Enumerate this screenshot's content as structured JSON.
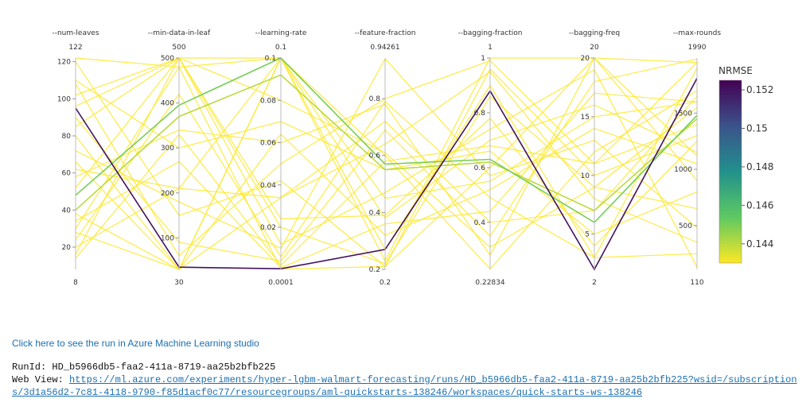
{
  "chart_data": {
    "type": "parallel_coordinates",
    "metric": "NRMSE",
    "colorbar": {
      "ticks": [
        "0.152",
        "0.15",
        "0.148",
        "0.146",
        "0.144"
      ],
      "colors": [
        "#440154",
        "#3b528b",
        "#21918c",
        "#5ec962",
        "#fde725"
      ]
    },
    "axes": [
      {
        "name": "--num-leaves",
        "top": "122",
        "bottom": "8",
        "ticks": [
          "120",
          "100",
          "80",
          "60",
          "40",
          "20"
        ]
      },
      {
        "name": "--min-data-in-leaf",
        "top": "500",
        "bottom": "30",
        "ticks": [
          "500",
          "400",
          "300",
          "200",
          "100"
        ]
      },
      {
        "name": "--learning-rate",
        "top": "0.1",
        "bottom": "0.0001",
        "ticks": [
          "0.1",
          "0.08",
          "0.06",
          "0.04",
          "0.02"
        ]
      },
      {
        "name": "--feature-fraction",
        "top": "0.94261",
        "bottom": "0.2",
        "ticks": [
          "0.8",
          "0.6",
          "0.4",
          "0.2"
        ]
      },
      {
        "name": "--bagging-fraction",
        "top": "1",
        "bottom": "0.22834",
        "ticks": [
          "1",
          "0.8",
          "0.6",
          "0.4"
        ]
      },
      {
        "name": "--bagging-freq",
        "top": "20",
        "bottom": "2",
        "ticks": [
          "20",
          "15",
          "10",
          "5"
        ]
      },
      {
        "name": "--max-rounds",
        "top": "1990",
        "bottom": "110",
        "ticks": [
          "1500",
          "1000",
          "500"
        ]
      }
    ],
    "runs": [
      {
        "values": [
          95,
          35,
          0.0004,
          0.27,
          0.88,
          2,
          1810
        ],
        "nrmse": 0.152
      },
      {
        "values": [
          48,
          395,
          0.1,
          0.57,
          0.63,
          6,
          1480
        ],
        "nrmse": 0.145
      },
      {
        "values": [
          40,
          370,
          0.092,
          0.55,
          0.62,
          7,
          1450
        ],
        "nrmse": 0.144
      },
      {
        "values": [
          122,
          480,
          0.0002,
          0.21,
          0.6,
          20,
          1950
        ],
        "nrmse": 0.143
      },
      {
        "values": [
          108,
          60,
          0.05,
          0.8,
          0.99,
          11,
          1400
        ],
        "nrmse": 0.143
      },
      {
        "values": [
          102,
          500,
          0.024,
          0.39,
          0.78,
          4,
          1250
        ],
        "nrmse": 0.143
      },
      {
        "values": [
          90,
          90,
          0.004,
          0.69,
          0.35,
          18,
          1980
        ],
        "nrmse": 0.143
      },
      {
        "values": [
          85,
          500,
          0.1,
          0.38,
          0.7,
          16,
          1150
        ],
        "nrmse": 0.143
      },
      {
        "values": [
          72,
          180,
          0.01,
          0.94,
          0.57,
          13,
          480
        ],
        "nrmse": 0.143
      },
      {
        "values": [
          66,
          30,
          0.1,
          0.45,
          0.55,
          15,
          1600
        ],
        "nrmse": 0.143
      },
      {
        "values": [
          58,
          340,
          0.06,
          0.78,
          0.28,
          20,
          900
        ],
        "nrmse": 0.143
      },
      {
        "values": [
          52,
          500,
          0.02,
          0.22,
          0.86,
          9,
          650
        ],
        "nrmse": 0.143
      },
      {
        "values": [
          38,
          30,
          0.034,
          0.64,
          0.95,
          8,
          350
        ],
        "nrmse": 0.143
      },
      {
        "values": [
          34,
          270,
          0.0009,
          0.36,
          0.44,
          17,
          1600
        ],
        "nrmse": 0.143
      },
      {
        "values": [
          28,
          30,
          0.1,
          0.27,
          0.9,
          3,
          250
        ],
        "nrmse": 0.143
      },
      {
        "values": [
          24,
          420,
          0.006,
          0.79,
          0.49,
          3,
          1900
        ],
        "nrmse": 0.143
      },
      {
        "values": [
          20,
          210,
          0.1,
          0.6,
          0.23,
          12,
          1700
        ],
        "nrmse": 0.143
      },
      {
        "values": [
          16,
          500,
          0.012,
          0.47,
          0.74,
          19,
          130
        ],
        "nrmse": 0.143
      },
      {
        "values": [
          120,
          150,
          0.042,
          0.21,
          0.96,
          10,
          1300
        ],
        "nrmse": 0.143
      },
      {
        "values": [
          110,
          300,
          0.07,
          0.55,
          0.66,
          5,
          800
        ],
        "nrmse": 0.143
      },
      {
        "values": [
          80,
          30,
          0.064,
          0.32,
          0.52,
          14,
          1050
        ],
        "nrmse": 0.143
      },
      {
        "values": [
          30,
          480,
          0.1,
          0.23,
          1.0,
          20,
          1120
        ],
        "nrmse": 0.143
      },
      {
        "values": [
          62,
          210,
          0.034,
          0.72,
          0.4,
          7,
          1650
        ],
        "nrmse": 0.143
      },
      {
        "values": [
          14,
          330,
          0.002,
          0.58,
          0.68,
          11,
          1950
        ],
        "nrmse": 0.143
      },
      {
        "values": [
          96,
          500,
          0.08,
          0.61,
          0.31,
          9,
          1550
        ],
        "nrmse": 0.143
      }
    ]
  },
  "link": {
    "text": "Click here to see the run in Azure Machine Learning studio"
  },
  "run": {
    "run_id_label": "RunId: ",
    "run_id": "HD_b5966db5-faa2-411a-8719-aa25b2bfb225",
    "web_view_label": "Web View: ",
    "web_view_url": "https://ml.azure.com/experiments/hyper-lgbm-walmart-forecasting/runs/HD_b5966db5-faa2-411a-8719-aa25b2bfb225?wsid=/subscriptions/3d1a56d2-7c81-4118-9790-f85d1acf0c77/resourcegroups/aml-quickstarts-138246/workspaces/quick-starts-ws-138246"
  }
}
